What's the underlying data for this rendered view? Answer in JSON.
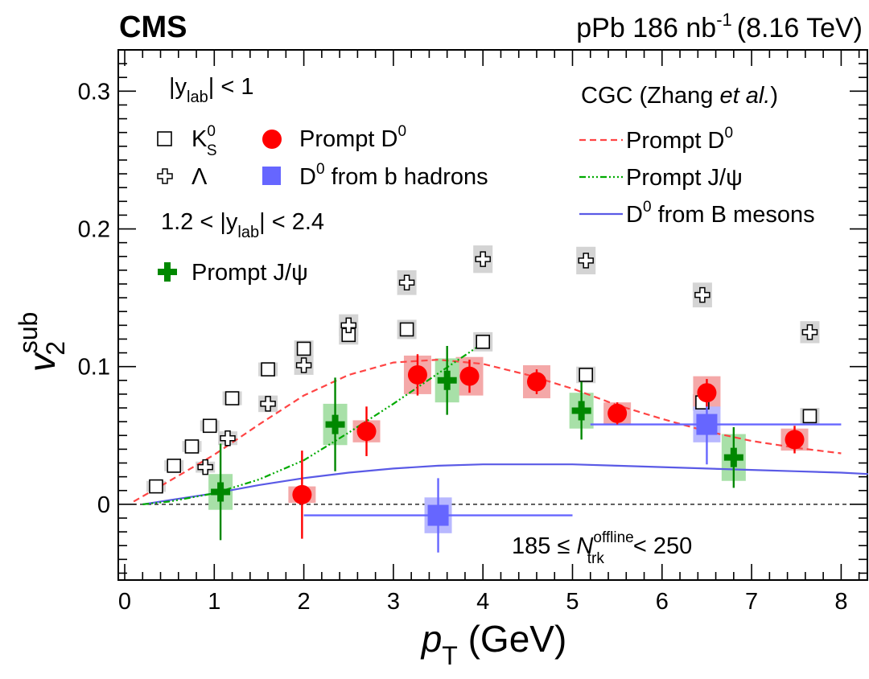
{
  "header": {
    "experiment": "CMS",
    "dataset_prefix": "pPb 186 nb",
    "dataset_sup": "-1",
    "energy": "(8.16 TeV)"
  },
  "legend": {
    "rap1_prefix": "|y",
    "rap1_sub": "lab",
    "rap1_suffix": "| < 1",
    "k0s_base": "K",
    "k0s_sup": "0",
    "k0s_sub": "S",
    "lambda": "Λ",
    "prompt_d0_base": "Prompt D",
    "prompt_d0_sup": "0",
    "d0_b_base": "D",
    "d0_b_sup": "0",
    "d0_b_suffix": " from b hadrons",
    "rap2_prefix": "1.2 < |y",
    "rap2_sub": "lab",
    "rap2_suffix": "| < 2.4",
    "jpsi": "Prompt J/ψ",
    "cgc_prefix": "CGC (Zhang ",
    "cgc_italic": "et al.",
    "cgc_suffix": ")",
    "cgc_d0_base": "Prompt D",
    "cgc_d0_sup": "0",
    "cgc_jpsi": "Prompt J/ψ",
    "cgc_b_base": "D",
    "cgc_b_sup": "0",
    "cgc_b_suffix": " from B mesons"
  },
  "annotation": {
    "prefix": "185 ≤ ",
    "N": "N",
    "sup": "offline",
    "sub": "trk",
    "suffix": " < 250"
  },
  "colors": {
    "prompt_d0": "#ff0000",
    "prompt_d0_box": "#f4a8a8",
    "d0_b": "#6666ff",
    "d0_b_box": "#b8b8ff",
    "jpsi": "#008800",
    "jpsi_box": "#a8e0a8",
    "syst_gray": "#d4d4d4",
    "cgc_d0": "#ff4444",
    "cgc_jpsi": "#00aa00",
    "cgc_b": "#5a5ae6"
  },
  "chart_data": {
    "type": "scatter",
    "xlabel_main": "p",
    "xlabel_sub": "T",
    "xlabel_unit": " (GeV)",
    "ylabel_main": "v",
    "ylabel_sub": "2",
    "ylabel_sup": "sub",
    "xlim": [
      0,
      8.3
    ],
    "ylim": [
      -0.055,
      0.33
    ],
    "x_ticks": [
      0,
      1,
      2,
      3,
      4,
      5,
      6,
      7,
      8
    ],
    "y_ticks": [
      0,
      0.1,
      0.2,
      0.3
    ],
    "y_tick_labels": [
      "0",
      "0.1",
      "0.2",
      "0.3"
    ],
    "x_tick_labels": [
      "0",
      "1",
      "2",
      "3",
      "4",
      "5",
      "6",
      "7",
      "8"
    ],
    "series": [
      {
        "name": "K0S |ylab| < 1",
        "x": [
          0.35,
          0.55,
          0.75,
          0.95,
          1.2,
          1.6,
          2.0,
          2.5,
          3.15,
          4.0,
          5.15,
          6.45,
          7.65
        ],
        "y": [
          0.013,
          0.028,
          0.042,
          0.057,
          0.077,
          0.098,
          0.113,
          0.123,
          0.127,
          0.118,
          0.094,
          0.074,
          0.064
        ],
        "sys": [
          0.004,
          0.004,
          0.004,
          0.004,
          0.005,
          0.005,
          0.006,
          0.007,
          0.007,
          0.007,
          0.006,
          0.006,
          0.006
        ]
      },
      {
        "name": "Lambda |ylab| < 1",
        "x": [
          0.9,
          1.15,
          1.6,
          2.0,
          2.5,
          3.15,
          4.0,
          5.15,
          6.45,
          7.65
        ],
        "y": [
          0.027,
          0.048,
          0.073,
          0.101,
          0.13,
          0.161,
          0.178,
          0.177,
          0.152,
          0.125
        ],
        "sys": [
          0.004,
          0.005,
          0.006,
          0.007,
          0.008,
          0.009,
          0.01,
          0.01,
          0.009,
          0.008
        ]
      },
      {
        "name": "Prompt D0 |ylab| < 1",
        "x": [
          1.98,
          2.7,
          3.27,
          3.85,
          4.6,
          5.5,
          6.5,
          7.48
        ],
        "y": [
          0.007,
          0.053,
          0.094,
          0.093,
          0.089,
          0.066,
          0.081,
          0.047
        ],
        "err": [
          0.032,
          0.018,
          0.015,
          0.012,
          0.009,
          0.008,
          0.01,
          0.01
        ],
        "sys": [
          0.006,
          0.008,
          0.014,
          0.014,
          0.012,
          0.008,
          0.012,
          0.008
        ]
      },
      {
        "name": "D0 from b hadrons |ylab| < 1",
        "x": [
          3.5,
          6.5
        ],
        "y": [
          -0.008,
          0.058
        ],
        "xerr_lo": [
          1.5,
          1.3
        ],
        "xerr_hi": [
          1.5,
          1.5
        ],
        "err": [
          0.027,
          0.029
        ],
        "sys": [
          0.013,
          0.013
        ]
      },
      {
        "name": "Prompt J/psi 1.2 < |ylab| < 2.4",
        "x": [
          1.07,
          2.35,
          3.6,
          5.1,
          6.8
        ],
        "y": [
          0.009,
          0.058,
          0.09,
          0.068,
          0.034
        ],
        "err": [
          0.035,
          0.034,
          0.025,
          0.021,
          0.022
        ],
        "sys": [
          0.013,
          0.015,
          0.016,
          0.013,
          0.017
        ]
      },
      {
        "name": "CGC Prompt D0",
        "x": [
          0.1,
          0.5,
          1.0,
          1.5,
          2.0,
          2.5,
          3.0,
          3.5,
          4.0,
          4.5,
          5.0,
          5.5,
          6.0,
          6.5,
          7.0,
          7.5,
          8.0
        ],
        "y": [
          0.002,
          0.017,
          0.036,
          0.058,
          0.079,
          0.094,
          0.103,
          0.105,
          0.102,
          0.094,
          0.084,
          0.072,
          0.062,
          0.053,
          0.046,
          0.041,
          0.037
        ]
      },
      {
        "name": "CGC Prompt J/psi",
        "x": [
          0.2,
          0.5,
          1.0,
          1.5,
          2.0,
          2.5,
          3.0,
          3.5,
          4.0
        ],
        "y": [
          0.0,
          0.002,
          0.008,
          0.018,
          0.032,
          0.052,
          0.073,
          0.095,
          0.117
        ]
      },
      {
        "name": "CGC D0 from B mesons",
        "x": [
          0.2,
          0.5,
          1.0,
          1.5,
          2.0,
          2.5,
          3.0,
          3.5,
          4.0,
          4.5,
          5.0,
          5.5,
          6.0,
          6.5,
          7.0,
          7.5,
          8.0,
          8.3
        ],
        "y": [
          0.0,
          0.003,
          0.008,
          0.014,
          0.019,
          0.023,
          0.026,
          0.028,
          0.029,
          0.029,
          0.029,
          0.028,
          0.027,
          0.026,
          0.025,
          0.024,
          0.023,
          0.022
        ]
      }
    ]
  }
}
